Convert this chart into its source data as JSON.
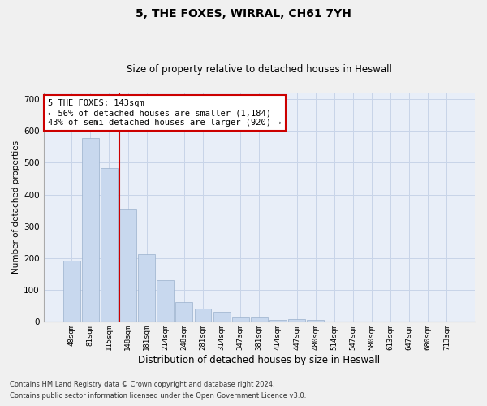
{
  "title1": "5, THE FOXES, WIRRAL, CH61 7YH",
  "title2": "Size of property relative to detached houses in Heswall",
  "xlabel": "Distribution of detached houses by size in Heswall",
  "ylabel": "Number of detached properties",
  "categories": [
    "48sqm",
    "81sqm",
    "115sqm",
    "148sqm",
    "181sqm",
    "214sqm",
    "248sqm",
    "281sqm",
    "314sqm",
    "347sqm",
    "381sqm",
    "414sqm",
    "447sqm",
    "480sqm",
    "514sqm",
    "547sqm",
    "580sqm",
    "613sqm",
    "647sqm",
    "680sqm",
    "713sqm"
  ],
  "values": [
    192,
    578,
    483,
    352,
    213,
    130,
    62,
    42,
    31,
    15,
    13,
    7,
    9,
    6,
    0,
    0,
    0,
    0,
    0,
    0,
    0
  ],
  "bar_color": "#c8d8ee",
  "bar_edge_color": "#9ab0cc",
  "annotation_text": "5 THE FOXES: 143sqm\n← 56% of detached houses are smaller (1,184)\n43% of semi-detached houses are larger (920) →",
  "annotation_box_color": "#ffffff",
  "annotation_box_edge": "#cc0000",
  "redline_color": "#cc0000",
  "ylim": [
    0,
    720
  ],
  "yticks": [
    0,
    100,
    200,
    300,
    400,
    500,
    600,
    700
  ],
  "footer1": "Contains HM Land Registry data © Crown copyright and database right 2024.",
  "footer2": "Contains public sector information licensed under the Open Government Licence v3.0.",
  "grid_color": "#c8d4e8",
  "plot_bg_color": "#e8eef8",
  "fig_bg_color": "#f0f0f0"
}
